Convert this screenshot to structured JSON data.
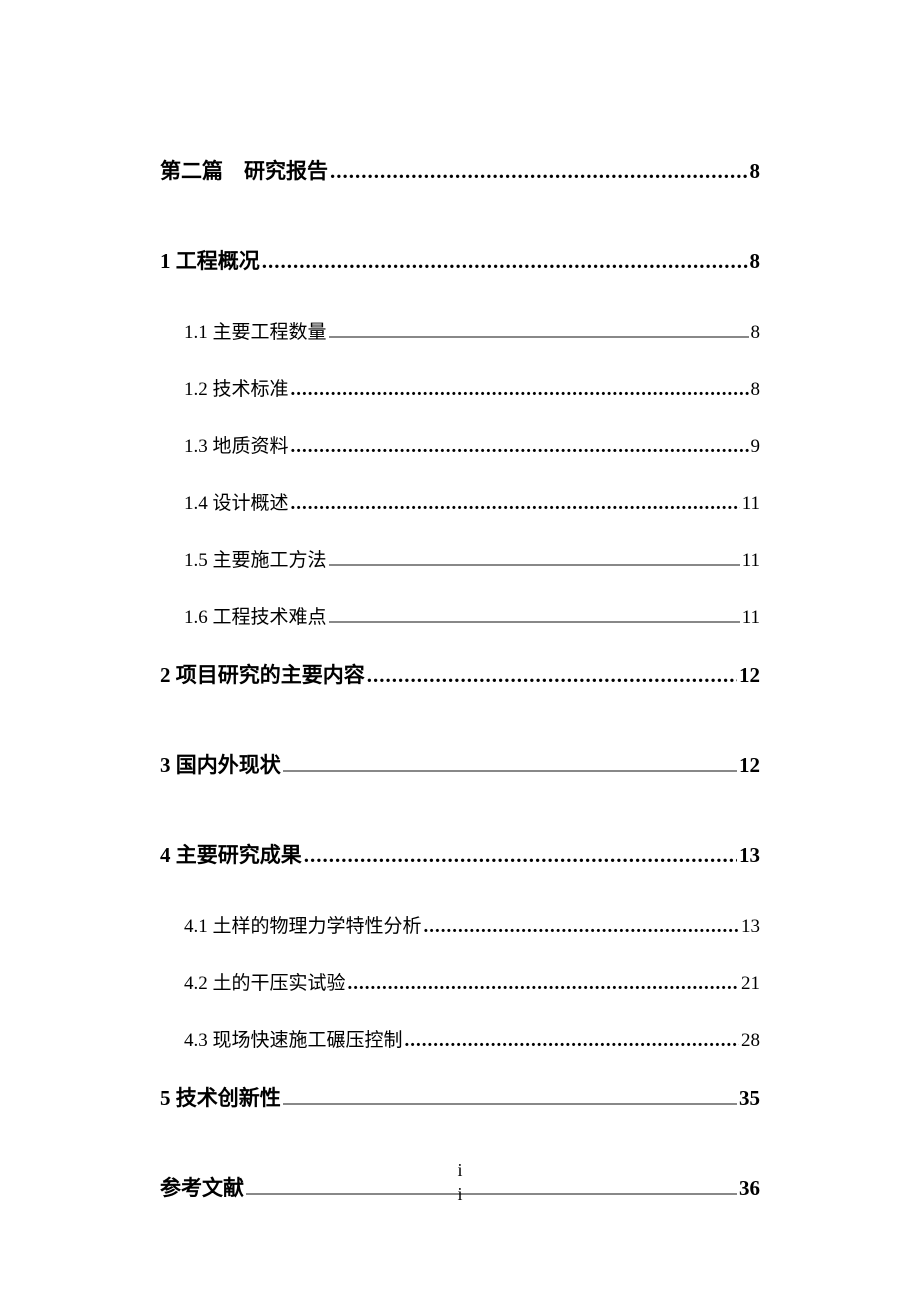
{
  "toc": {
    "entries": [
      {
        "level": 1,
        "label": "第二篇　研究报告",
        "page": "8",
        "leader": "dots",
        "wideGap": true
      },
      {
        "level": 1,
        "label": "1  工程概况",
        "page": "8",
        "leader": "dots",
        "wideGap": false
      },
      {
        "level": 2,
        "label": "1.1  主要工程数量",
        "page": "8",
        "leader": "line"
      },
      {
        "level": 2,
        "label": "1.2  技术标准",
        "page": "8",
        "leader": "dots"
      },
      {
        "level": 2,
        "label": "1.3  地质资料",
        "page": "9",
        "leader": "dots"
      },
      {
        "level": 2,
        "label": "1.4  设计概述",
        "page": "11",
        "leader": "dots"
      },
      {
        "level": 2,
        "label": "1.5  主要施工方法",
        "page": "11",
        "leader": "line"
      },
      {
        "level": 2,
        "label": "1.6  工程技术难点",
        "page": "11",
        "leader": "line"
      },
      {
        "level": 1,
        "label": "2  项目研究的主要内容",
        "page": "12",
        "leader": "dots",
        "wideGap": true
      },
      {
        "level": 1,
        "label": "3  国内外现状",
        "page": "12",
        "leader": "line",
        "wideGap": true
      },
      {
        "level": 1,
        "label": "4  主要研究成果",
        "page": "13",
        "leader": "dots",
        "wideGap": false
      },
      {
        "level": 2,
        "label": "4.1  土样的物理力学特性分析",
        "page": "13",
        "leader": "dots"
      },
      {
        "level": 2,
        "label": "4.2  土的干压实试验",
        "page": "21",
        "leader": "dots"
      },
      {
        "level": 2,
        "label": "4.3  现场快速施工碾压控制",
        "page": "28",
        "leader": "dots"
      },
      {
        "level": 1,
        "label": "5  技术创新性",
        "page": "35",
        "leader": "line",
        "wideGap": true
      },
      {
        "level": 1,
        "label": "参考文献",
        "page": "36",
        "leader": "line",
        "wideGap": false
      }
    ]
  },
  "footer": {
    "pageNumber1": "i",
    "pageNumber2": "i"
  },
  "styling": {
    "pageWidth": 920,
    "pageHeight": 1302,
    "background": "#ffffff",
    "textColor": "#000000",
    "lineColor": "#888888",
    "level1FontSize": 21,
    "level2FontSize": 19,
    "level1Bold": true,
    "level2Bold": false
  }
}
